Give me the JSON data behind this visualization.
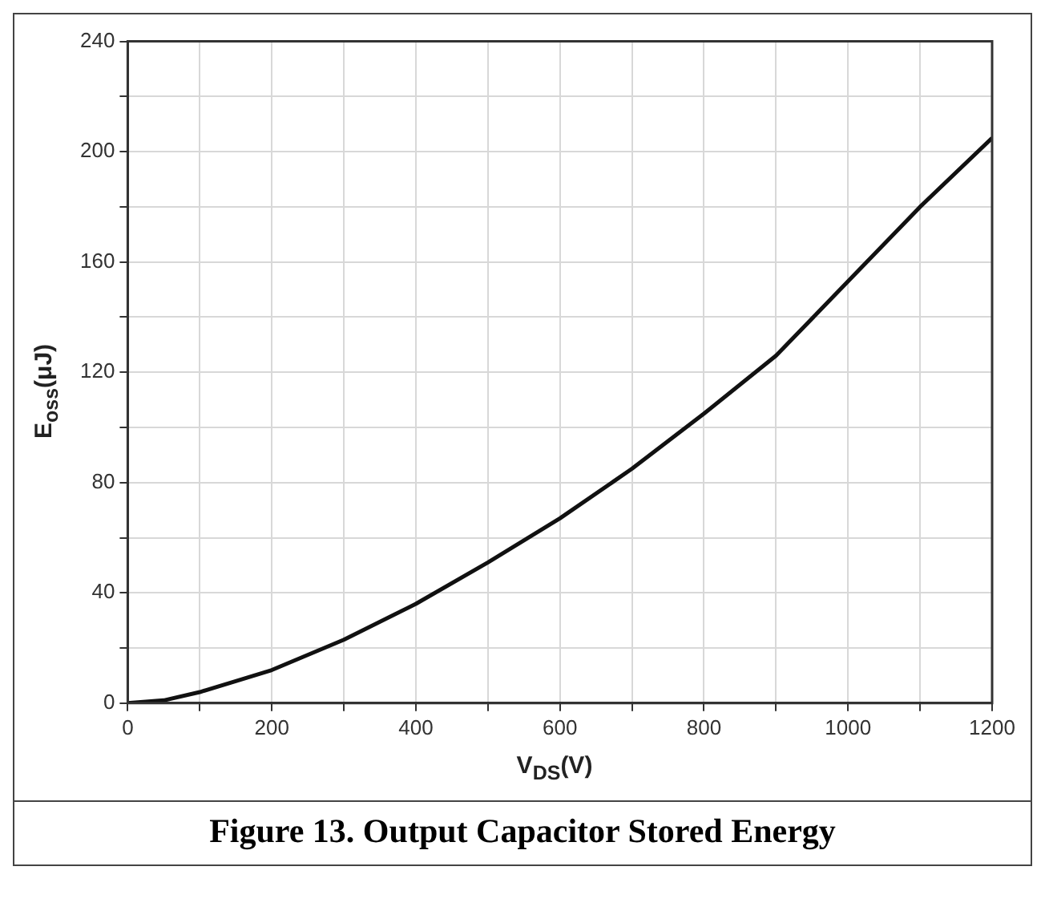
{
  "chart_data": {
    "type": "line",
    "title": "Figure 13. Output Capacitor Stored Energy",
    "xlabel": "V$_{DS}$(V)",
    "ylabel": "E$_{oss}$(μJ)",
    "x": [
      0,
      50,
      100,
      150,
      200,
      300,
      400,
      500,
      600,
      700,
      800,
      900,
      1000,
      1100,
      1200
    ],
    "series": [
      {
        "color": "#111111",
        "values": [
          0,
          1,
          4,
          8,
          12,
          23,
          36,
          51,
          67,
          85,
          105,
          126,
          153,
          180,
          205
        ]
      }
    ],
    "xlim": [
      0,
      1200
    ],
    "ylim": [
      0,
      240
    ],
    "xticks": [
      0,
      {
        "value": 100,
        "label": null
      },
      200,
      {
        "value": 300,
        "label": null
      },
      400,
      {
        "value": 500,
        "label": null
      },
      600,
      {
        "value": 700,
        "label": null
      },
      800,
      {
        "value": 900,
        "label": null
      },
      1000,
      {
        "value": 1100,
        "label": null
      },
      1200
    ],
    "yticks": [
      0,
      {
        "value": 20,
        "label": null
      },
      40,
      {
        "value": 60,
        "label": null
      },
      80,
      {
        "value": 100,
        "label": null
      },
      120,
      {
        "value": 140,
        "label": null
      },
      160,
      {
        "value": 180,
        "label": null
      },
      200,
      {
        "value": 220,
        "label": null
      },
      240
    ],
    "grid": true
  }
}
